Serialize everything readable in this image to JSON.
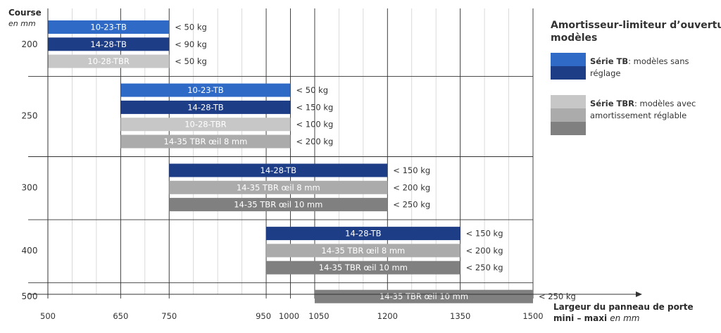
{
  "chart_data": {
    "type": "bar",
    "orientation": "horizontal-range",
    "y_axis_title": "Course",
    "y_axis_unit": "en mm",
    "x_axis_label_line1": "Largeur du panneau de porte",
    "x_axis_label_line2_prefix": "mini – maxi ",
    "x_axis_label_line2_unit": "en mm",
    "x_ticks": [
      500,
      650,
      750,
      950,
      1000,
      1050,
      1200,
      1350,
      1500
    ],
    "x_range": [
      500,
      1500
    ],
    "colors": {
      "tb_light": "#2f6bc6",
      "tb_dark": "#1e3d87",
      "tbr_light": "#c7c7c7",
      "tbr_mid": "#ababab",
      "tbr_dark": "#808080",
      "grid": "#d0d0d0",
      "axis": "#333333"
    },
    "groups": [
      {
        "course": "200",
        "bars": [
          {
            "label": "10-23-TB",
            "min": 500,
            "max": 750,
            "weight": "< 50 kg",
            "color": "tb_light"
          },
          {
            "label": "14-28-TB",
            "min": 500,
            "max": 750,
            "weight": "< 90 kg",
            "color": "tb_dark"
          },
          {
            "label": "10-28-TBR",
            "min": 500,
            "max": 750,
            "weight": "< 50 kg",
            "color": "tbr_light"
          }
        ]
      },
      {
        "course": "250",
        "bars": [
          {
            "label": "10-23-TB",
            "min": 650,
            "max": 1000,
            "weight": "< 50 kg",
            "color": "tb_light"
          },
          {
            "label": "14-28-TB",
            "min": 650,
            "max": 1000,
            "weight": "< 150 kg",
            "color": "tb_dark"
          },
          {
            "label": "10-28-TBR",
            "min": 650,
            "max": 1000,
            "weight": "< 100 kg",
            "color": "tbr_light"
          },
          {
            "label": "14-35 TBR œil 8 mm",
            "min": 650,
            "max": 1000,
            "weight": "< 200 kg",
            "color": "tbr_mid"
          }
        ]
      },
      {
        "course": "300",
        "bars": [
          {
            "label": "14-28-TB",
            "min": 750,
            "max": 1200,
            "weight": "< 150 kg",
            "color": "tb_dark"
          },
          {
            "label": "14-35 TBR œil 8 mm",
            "min": 750,
            "max": 1200,
            "weight": "< 200 kg",
            "color": "tbr_mid"
          },
          {
            "label": "14-35 TBR œil 10 mm",
            "min": 750,
            "max": 1200,
            "weight": "< 250 kg",
            "color": "tbr_dark"
          }
        ]
      },
      {
        "course": "400",
        "bars": [
          {
            "label": "14-28-TB",
            "min": 950,
            "max": 1350,
            "weight": "< 150 kg",
            "color": "tb_dark"
          },
          {
            "label": "14-35 TBR œil 8 mm",
            "min": 950,
            "max": 1350,
            "weight": "< 200 kg",
            "color": "tbr_mid"
          },
          {
            "label": "14-35 TBR œil 10 mm",
            "min": 950,
            "max": 1350,
            "weight": "< 250 kg",
            "color": "tbr_dark"
          }
        ]
      },
      {
        "course": "500",
        "bars": [
          {
            "label": "14-35 TBR œil 10 mm",
            "min": 1050,
            "max": 1500,
            "weight": "< 250 kg",
            "color": "tbr_dark"
          }
        ]
      }
    ],
    "legend": {
      "title_line1": "Amortisseur-limiteur d’ouverture",
      "title_line2": "modèles",
      "items": [
        {
          "name_bold": "Série TB",
          "text_line1": ": modèles sans",
          "text_line2": "réglage",
          "swatches": [
            "tb_light",
            "tb_dark"
          ]
        },
        {
          "name_bold": "Série TBR",
          "text_line1": ": modèles avec",
          "text_line2": "amortissement réglable",
          "swatches": [
            "tbr_light",
            "tbr_mid",
            "tbr_dark"
          ]
        }
      ]
    }
  }
}
